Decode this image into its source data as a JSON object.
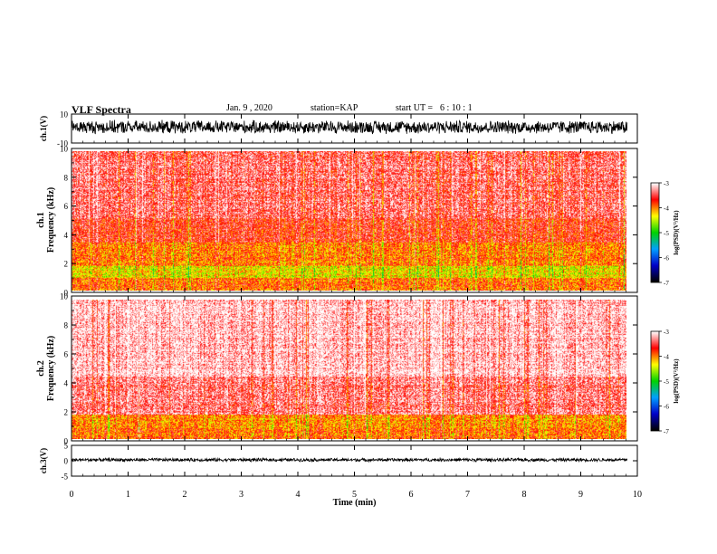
{
  "header": {
    "title": "VLF Spectra",
    "date": "Jan. 9 , 2020",
    "station_label": "station=",
    "station": "KAP",
    "start_label": "start UT =",
    "start_time": "6 : 10 : 1"
  },
  "chart_data": [
    {
      "type": "line",
      "panel": "ch1-waveform",
      "ylabel": "ch.1(V)",
      "ylim": [
        -10,
        10
      ],
      "y_ticks": [
        "10",
        "-10"
      ],
      "xlim": [
        0,
        10
      ],
      "signal_range": [
        -4,
        6
      ],
      "color": "#000000"
    },
    {
      "type": "heatmap",
      "panel": "ch1-spectrogram",
      "ylabel": "ch.1 Frequency (kHz)",
      "ylim": [
        0,
        10
      ],
      "y_ticks": [
        "0",
        "2",
        "4",
        "6",
        "8",
        "10"
      ],
      "xlim": [
        0,
        10
      ],
      "data_xmax": 9.82,
      "colorbar": {
        "label": "log(PSD)(V²/Hz)",
        "range": [
          -7,
          -3
        ],
        "ticks": [
          "-3",
          "-4",
          "-5",
          "-6",
          "-7"
        ]
      },
      "bands": [
        {
          "freq_khz": [
            0,
            0.9
          ],
          "level": -3.9
        },
        {
          "freq_khz": [
            0.9,
            1.7
          ],
          "level": -4.35
        },
        {
          "freq_khz": [
            1.7,
            3.4
          ],
          "level": -3.95
        },
        {
          "freq_khz": [
            3.4,
            5.2
          ],
          "level": -3.65
        },
        {
          "freq_khz": [
            5.2,
            10
          ],
          "level": -3.4
        }
      ]
    },
    {
      "type": "heatmap",
      "panel": "ch2-spectrogram",
      "ylabel": "ch.2 Frequency (kHz)",
      "ylim": [
        0,
        10
      ],
      "y_ticks": [
        "0",
        "2",
        "4",
        "6",
        "8",
        "10"
      ],
      "xlim": [
        0,
        10
      ],
      "data_xmax": 9.82,
      "colorbar": {
        "label": "log(PSD)(V²/Hz)",
        "range": [
          -7,
          -3
        ],
        "ticks": [
          "-3",
          "-4",
          "-5",
          "-6",
          "-7"
        ]
      },
      "bands": [
        {
          "freq_khz": [
            0,
            0.6
          ],
          "level": -3.9
        },
        {
          "freq_khz": [
            0.6,
            1.7
          ],
          "level": -4.0
        },
        {
          "freq_khz": [
            1.7,
            4.5
          ],
          "level": -3.35
        },
        {
          "freq_khz": [
            4.5,
            10
          ],
          "level": -3.1
        }
      ]
    },
    {
      "type": "line",
      "panel": "ch3-waveform",
      "ylabel": "ch.3(V)",
      "ylim": [
        -5,
        5
      ],
      "y_ticks": [
        "5",
        "0",
        "-5"
      ],
      "xlim": [
        0,
        10
      ],
      "signal_range": [
        -0.3,
        0.9
      ],
      "color": "#000000"
    }
  ],
  "x_axis": {
    "label": "Time (min)",
    "ticks": [
      "0",
      "1",
      "2",
      "3",
      "4",
      "5",
      "6",
      "7",
      "8",
      "9",
      "10"
    ]
  },
  "colormap": [
    "#000000",
    "#0000c8",
    "#00a0ff",
    "#00d200",
    "#ffff00",
    "#ff0000",
    "#ffffff"
  ]
}
